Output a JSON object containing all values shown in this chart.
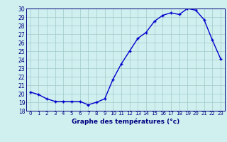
{
  "hours": [
    0,
    1,
    2,
    3,
    4,
    5,
    6,
    7,
    8,
    9,
    10,
    11,
    12,
    13,
    14,
    15,
    16,
    17,
    18,
    19,
    20,
    21,
    22,
    23
  ],
  "temps": [
    20.2,
    19.9,
    19.4,
    19.1,
    19.1,
    19.1,
    19.1,
    18.7,
    19.0,
    19.4,
    21.7,
    23.5,
    25.0,
    26.5,
    27.2,
    28.5,
    29.2,
    29.5,
    29.3,
    30.0,
    29.8,
    28.7,
    26.3,
    24.1
  ],
  "line_color": "#0000cc",
  "marker": "+",
  "bg_color": "#d0f0f0",
  "grid_color": "#a0c8c8",
  "xlabel": "Graphe des températures (°c)",
  "xlabel_color": "#000080",
  "tick_color": "#000080",
  "ylim": [
    18,
    30
  ],
  "yticks": [
    18,
    19,
    20,
    21,
    22,
    23,
    24,
    25,
    26,
    27,
    28,
    29,
    30
  ],
  "xticks": [
    0,
    1,
    2,
    3,
    4,
    5,
    6,
    7,
    8,
    9,
    10,
    11,
    12,
    13,
    14,
    15,
    16,
    17,
    18,
    19,
    20,
    21,
    22,
    23
  ],
  "xtick_labels": [
    "0",
    "1",
    "2",
    "3",
    "4",
    "5",
    "6",
    "7",
    "8",
    "9",
    "10",
    "11",
    "12",
    "13",
    "14",
    "15",
    "16",
    "17",
    "18",
    "19",
    "20",
    "21",
    "22",
    "23"
  ],
  "markersize": 3,
  "linewidth": 1.0
}
